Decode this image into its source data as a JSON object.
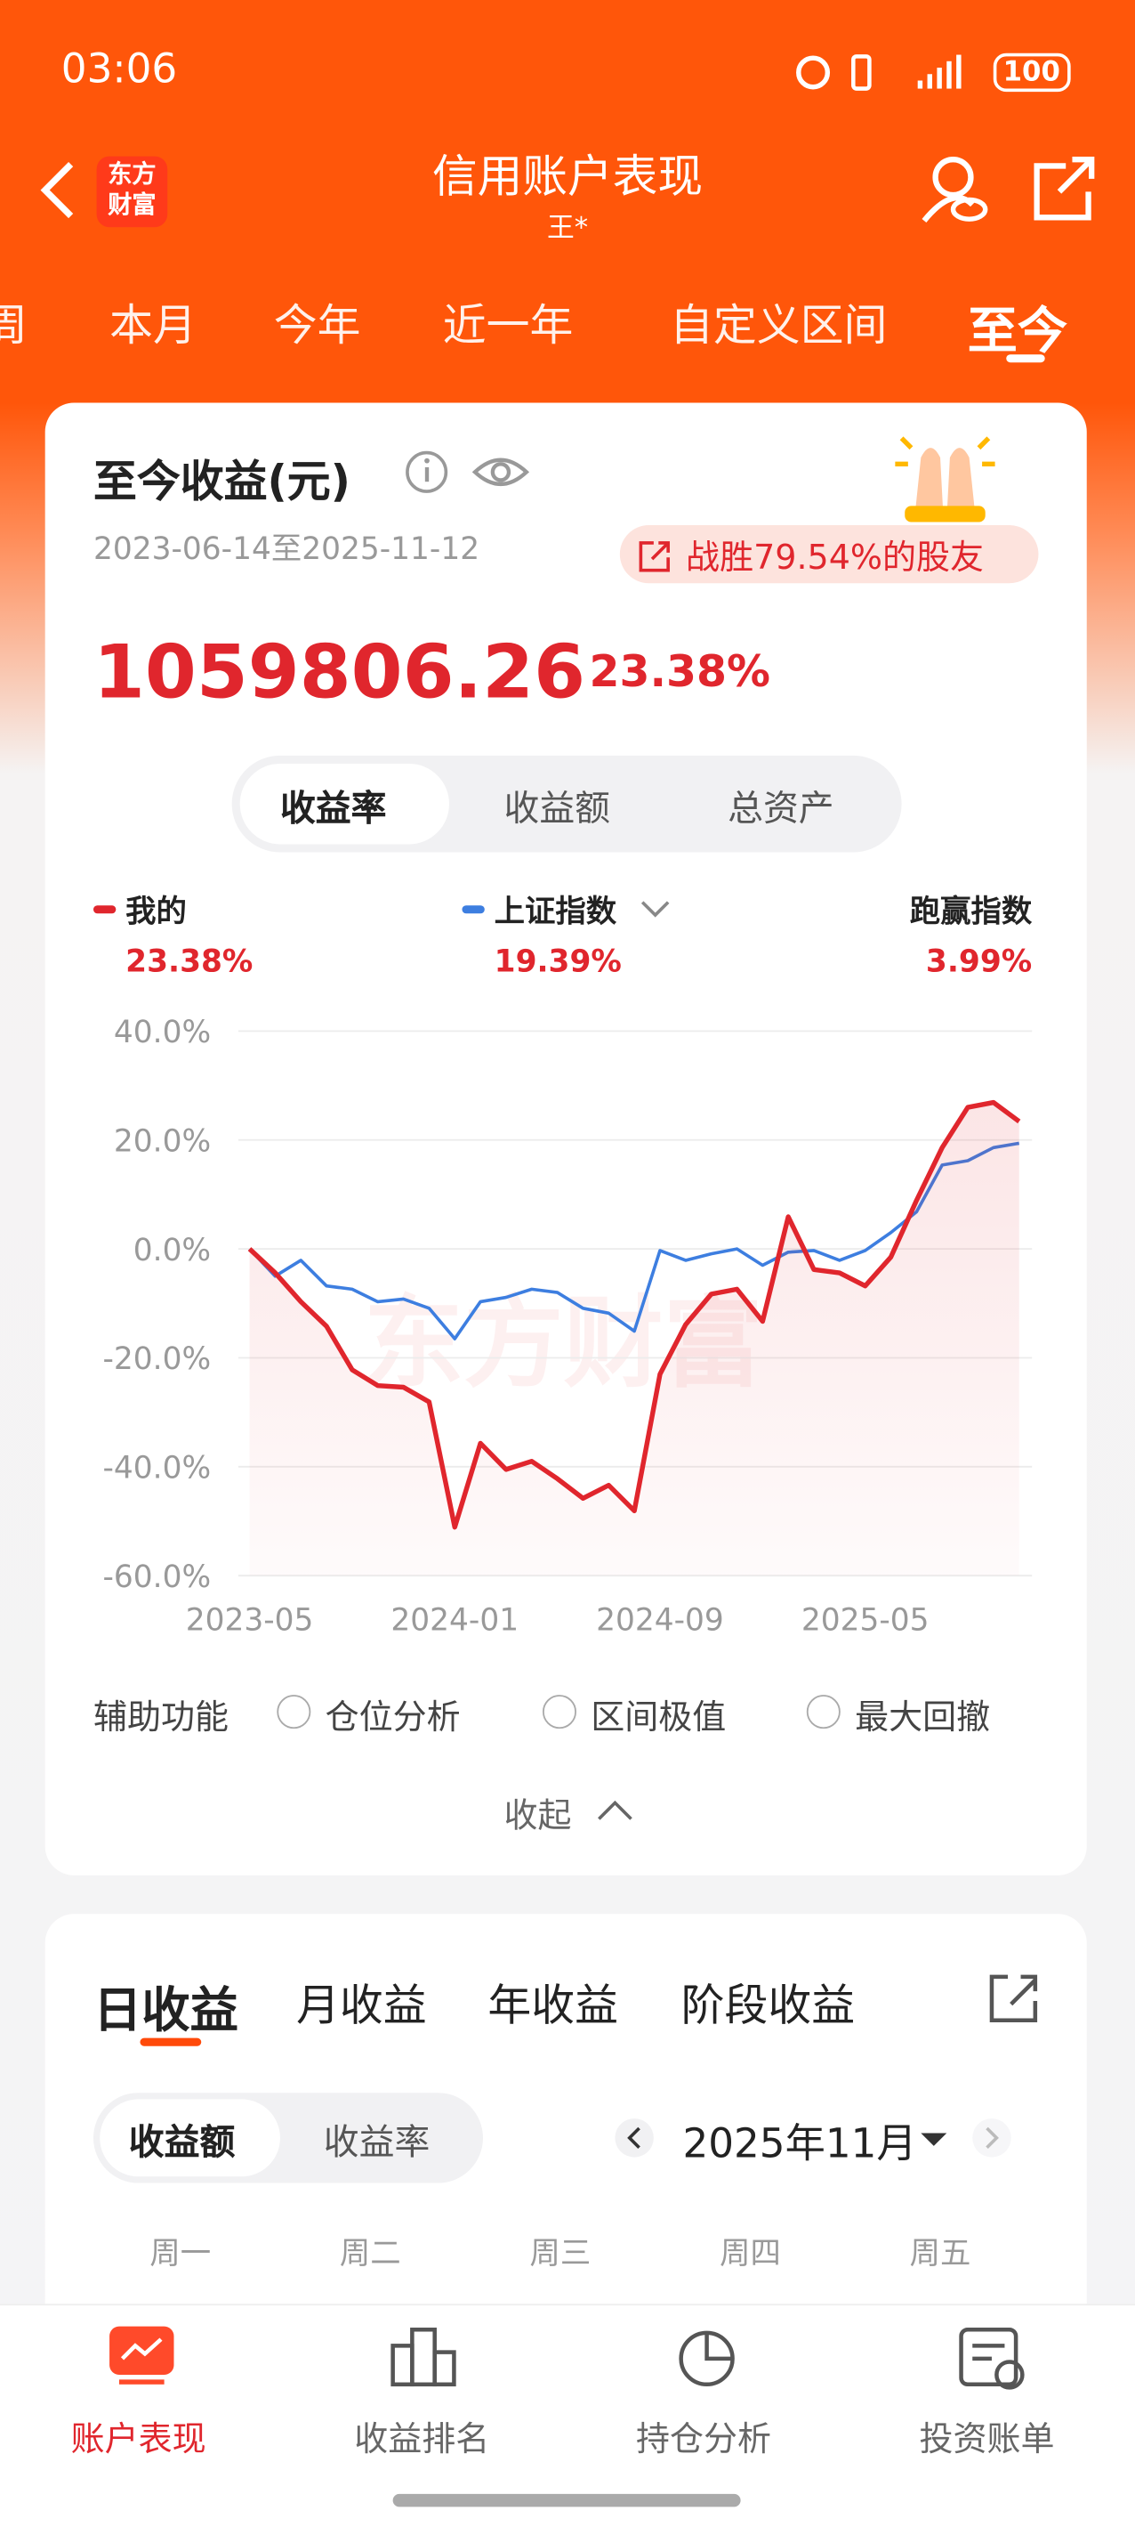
{
  "status_bar": {
    "time": "03:06",
    "battery": "100"
  },
  "header": {
    "logo": "东方财富",
    "title": "信用账户表现",
    "subtitle": "王*"
  },
  "period_tabs": [
    "周",
    "本月",
    "今年",
    "近一年",
    "自定义区间",
    "至今"
  ],
  "summary": {
    "title": "至今收益(元)",
    "date_range": "2023-06-14至2025-11-12",
    "badge": "战胜79.54%的股友",
    "amount": "1059806.26",
    "rate": "23.38%"
  },
  "metric_tabs": [
    "收益率",
    "收益额",
    "总资产"
  ],
  "chart_data": {
    "type": "line",
    "watermark": "东方财富",
    "x": [
      "2023-05",
      "2023-06",
      "2023-07",
      "2023-08",
      "2023-09",
      "2023-10",
      "2023-11",
      "2023-12",
      "2024-01",
      "2024-02",
      "2024-03",
      "2024-04",
      "2024-05",
      "2024-06",
      "2024-07",
      "2024-08",
      "2024-09",
      "2024-10",
      "2024-11",
      "2024-12",
      "2025-01",
      "2025-02",
      "2025-03",
      "2025-04",
      "2025-05",
      "2025-06",
      "2025-07",
      "2025-08",
      "2025-09",
      "2025-10",
      "2025-11"
    ],
    "xticks": [
      "2023-05",
      "2024-01",
      "2024-09",
      "2025-05"
    ],
    "ylim": [
      -60,
      40
    ],
    "yticks": [
      {
        "value": -60,
        "label": "-60.0%"
      },
      {
        "value": -40,
        "label": "-40.0%"
      },
      {
        "value": -20,
        "label": "-20.0%"
      },
      {
        "value": 0,
        "label": "0.0%"
      },
      {
        "value": 20,
        "label": "20.0%"
      },
      {
        "value": 40,
        "label": "40.0%"
      }
    ],
    "grid": true,
    "series": [
      {
        "name": "我的",
        "color": "#e0262d",
        "latest": "23.38%",
        "values": [
          0,
          -4.4,
          -9.7,
          -14.2,
          -22.2,
          -25.1,
          -25.4,
          -28.1,
          -51.1,
          -35.7,
          -40.5,
          -39.0,
          -42.2,
          -45.8,
          -43.4,
          -48.1,
          -23.0,
          -13.9,
          -8.3,
          -7.4,
          -13.3,
          5.9,
          -3.8,
          -4.4,
          -6.8,
          -1.5,
          8.9,
          18.6,
          26.0,
          26.9,
          23.4
        ]
      },
      {
        "name": "上证指数",
        "color": "#3d7ee0",
        "latest": "19.39%",
        "values": [
          0,
          -5.0,
          -2.1,
          -6.8,
          -7.4,
          -9.7,
          -9.2,
          -10.9,
          -16.5,
          -9.7,
          -8.9,
          -7.4,
          -8.0,
          -10.9,
          -11.8,
          -15.1,
          -0.3,
          -2.1,
          -0.9,
          0,
          -3.0,
          -0.6,
          -0.3,
          -2.1,
          -0.3,
          3.0,
          6.8,
          15.4,
          16.2,
          18.6,
          19.4
        ]
      }
    ],
    "excess": {
      "name": "跑赢指数",
      "value": "3.99%"
    }
  },
  "tools": {
    "label": "辅助功能",
    "options": [
      "仓位分析",
      "区间极值",
      "最大回撤"
    ],
    "collapse": "收起"
  },
  "daily": {
    "tabs": [
      "日收益",
      "月收益",
      "年收益",
      "阶段收益"
    ],
    "toggle": [
      "收益额",
      "收益率"
    ],
    "month": "2025年11月",
    "weekdays": [
      "周一",
      "周二",
      "周三",
      "周四",
      "周五"
    ]
  },
  "bottom_nav": [
    "账户表现",
    "收益排名",
    "持仓分析",
    "投资账单"
  ]
}
